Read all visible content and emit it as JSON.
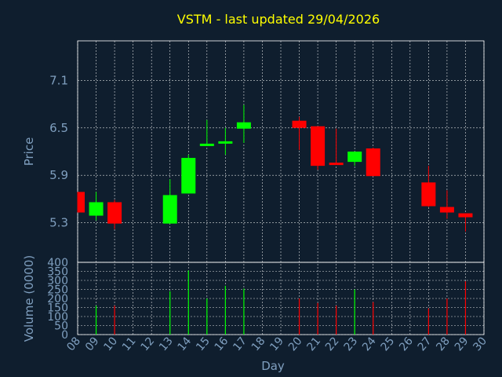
{
  "title": "VSTM - last updated 29/04/2026",
  "colors": {
    "background": "#0f1e2e",
    "up": "#00ff00",
    "down": "#ff0000",
    "title": "#ffff00",
    "axis_text": "#7f9fbf",
    "grid": "#ffffff"
  },
  "chart_data": [
    {
      "type": "candlestick",
      "ylabel": "Price",
      "ylim": [
        4.8,
        7.6
      ],
      "yticks": [
        "5.3",
        "5.9",
        "6.5",
        "7.1"
      ],
      "grid": true,
      "candles": [
        {
          "day": 8,
          "open": 5.69,
          "high": 5.69,
          "low": 5.43,
          "close": 5.43
        },
        {
          "day": 9,
          "open": 5.39,
          "high": 5.69,
          "low": 5.33,
          "close": 5.56
        },
        {
          "day": 10,
          "open": 5.56,
          "high": 5.59,
          "low": 5.22,
          "close": 5.29
        },
        {
          "day": 13,
          "open": 5.29,
          "high": 5.85,
          "low": 5.29,
          "close": 5.65
        },
        {
          "day": 14,
          "open": 5.67,
          "high": 6.16,
          "low": 5.67,
          "close": 6.12
        },
        {
          "day": 15,
          "open": 6.27,
          "high": 6.6,
          "low": 6.27,
          "close": 6.3
        },
        {
          "day": 16,
          "open": 6.31,
          "high": 6.5,
          "low": 6.16,
          "close": 6.32
        },
        {
          "day": 17,
          "open": 6.49,
          "high": 6.79,
          "low": 6.31,
          "close": 6.57
        },
        {
          "day": 20,
          "open": 6.59,
          "high": 6.64,
          "low": 6.22,
          "close": 6.5
        },
        {
          "day": 21,
          "open": 6.52,
          "high": 6.52,
          "low": 5.97,
          "close": 6.02
        },
        {
          "day": 22,
          "open": 6.05,
          "high": 6.49,
          "low": 6.04,
          "close": 6.04
        },
        {
          "day": 23,
          "open": 6.07,
          "high": 6.2,
          "low": 6.02,
          "close": 6.2
        },
        {
          "day": 24,
          "open": 6.24,
          "high": 6.25,
          "low": 5.89,
          "close": 5.89
        },
        {
          "day": 27,
          "open": 5.81,
          "high": 6.02,
          "low": 5.5,
          "close": 5.51
        },
        {
          "day": 28,
          "open": 5.5,
          "high": 5.71,
          "low": 5.35,
          "close": 5.43
        },
        {
          "day": 29,
          "open": 5.42,
          "high": 5.42,
          "low": 5.19,
          "close": 5.37
        }
      ]
    },
    {
      "type": "bar",
      "ylabel": "Volume (0000)",
      "ylim": [
        0,
        400
      ],
      "yticks": [
        "0",
        "50",
        "100",
        "150",
        "200",
        "250",
        "300",
        "350",
        "400"
      ],
      "xlabel": "Day",
      "x_ticks": [
        "08",
        "09",
        "10",
        "11",
        "12",
        "13",
        "14",
        "15",
        "16",
        "17",
        "18",
        "19",
        "20",
        "21",
        "22",
        "23",
        "24",
        "25",
        "26",
        "27",
        "28",
        "29",
        "30"
      ],
      "bars": [
        {
          "day": 9,
          "value": 160,
          "dir": "up"
        },
        {
          "day": 10,
          "value": 160,
          "dir": "down"
        },
        {
          "day": 13,
          "value": 240,
          "dir": "up"
        },
        {
          "day": 14,
          "value": 355,
          "dir": "up"
        },
        {
          "day": 15,
          "value": 200,
          "dir": "up"
        },
        {
          "day": 16,
          "value": 270,
          "dir": "up"
        },
        {
          "day": 17,
          "value": 255,
          "dir": "up"
        },
        {
          "day": 20,
          "value": 200,
          "dir": "down"
        },
        {
          "day": 21,
          "value": 175,
          "dir": "down"
        },
        {
          "day": 22,
          "value": 160,
          "dir": "down"
        },
        {
          "day": 23,
          "value": 250,
          "dir": "up"
        },
        {
          "day": 24,
          "value": 180,
          "dir": "down"
        },
        {
          "day": 27,
          "value": 145,
          "dir": "down"
        },
        {
          "day": 28,
          "value": 200,
          "dir": "down"
        },
        {
          "day": 29,
          "value": 295,
          "dir": "down"
        }
      ]
    }
  ]
}
